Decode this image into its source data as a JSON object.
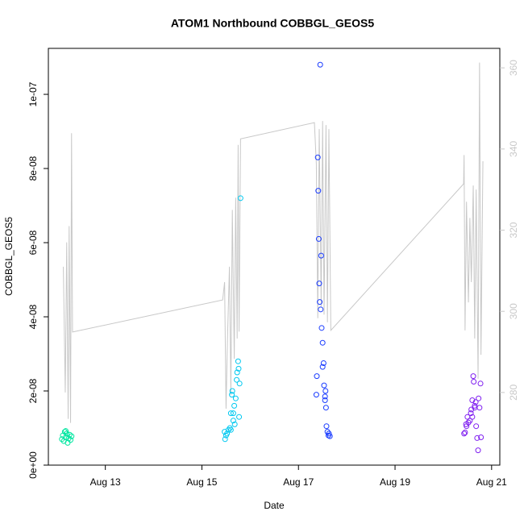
{
  "chart_data": {
    "type": "scatter",
    "title": "ATOM1 Northbound COBBGL_GEOS5",
    "xlabel": "Date",
    "ylabel": "COBBGL_GEOS5",
    "xlim": [
      11.82,
      21.17
    ],
    "xticks": [
      {
        "value": 13,
        "label": "Aug 13"
      },
      {
        "value": 15,
        "label": "Aug 15"
      },
      {
        "value": 17,
        "label": "Aug 17"
      },
      {
        "value": 19,
        "label": "Aug 19"
      },
      {
        "value": 21,
        "label": "Aug 21"
      }
    ],
    "ylim": [
      0,
      1.124e-07
    ],
    "yticks": [
      {
        "value": 0,
        "label": "0e+00"
      },
      {
        "value": 2e-08,
        "label": "2e-08"
      },
      {
        "value": 4e-08,
        "label": "4e-08"
      },
      {
        "value": 6e-08,
        "label": "6e-08"
      },
      {
        "value": 8e-08,
        "label": "8e-08"
      },
      {
        "value": 1e-07,
        "label": "1e-07"
      }
    ],
    "y2lim": [
      262.1,
      364.8
    ],
    "y2ticks": [
      280,
      300,
      320,
      340,
      360
    ],
    "y2_color": "#c8c8c8",
    "series": [
      {
        "type": "scatter",
        "color": "#00e6a0",
        "x": [
          12.1,
          12.12,
          12.14,
          12.16,
          12.18,
          12.2,
          12.22,
          12.24,
          12.26,
          12.28,
          12.18,
          12.3
        ],
        "values": [
          7e-09,
          8e-09,
          6.5e-09,
          9e-09,
          7.5e-09,
          8.5e-09,
          6e-09,
          7.2e-09,
          8.2e-09,
          6.8e-09,
          9.2e-09,
          7.8e-09
        ]
      },
      {
        "type": "scatter",
        "color": "#00c8f0",
        "x": [
          15.47,
          15.48,
          15.5,
          15.52,
          15.55,
          15.58,
          15.6,
          15.62,
          15.63,
          15.65,
          15.67,
          15.68,
          15.7,
          15.72,
          15.73,
          15.75,
          15.76,
          15.77,
          15.78,
          15.8,
          15.6,
          15.65
        ],
        "values": [
          9e-09,
          7e-09,
          8e-09,
          8.5e-09,
          9.5e-09,
          1e-08,
          1.4e-08,
          1.9e-08,
          2e-08,
          1.2e-08,
          1.6e-08,
          1.1e-08,
          1.8e-08,
          2.3e-08,
          2.5e-08,
          2.8e-08,
          2.6e-08,
          1.3e-08,
          2.2e-08,
          7.2e-08,
          9.5e-09,
          1.4e-08
        ]
      },
      {
        "type": "scatter",
        "color": "#1a3cff",
        "x": [
          17.37,
          17.38,
          17.4,
          17.41,
          17.42,
          17.43,
          17.44,
          17.45,
          17.46,
          17.47,
          17.48,
          17.5,
          17.5,
          17.52,
          17.53,
          17.55,
          17.56,
          17.57,
          17.58,
          17.6,
          17.62,
          17.63,
          17.65,
          17.55
        ],
        "values": [
          1.9e-08,
          2.4e-08,
          8.3e-08,
          7.4e-08,
          6.1e-08,
          4.9e-08,
          4.4e-08,
          1.08e-07,
          4.2e-08,
          5.65e-08,
          3.7e-08,
          3.3e-08,
          2.65e-08,
          2.75e-08,
          2.15e-08,
          1.85e-08,
          2e-08,
          1.55e-08,
          1.05e-08,
          9e-09,
          8e-09,
          8.5e-09,
          7.8e-09,
          1.75e-08
        ]
      },
      {
        "type": "scatter",
        "color": "#8020f0",
        "x": [
          20.43,
          20.45,
          20.47,
          20.48,
          20.5,
          20.52,
          20.55,
          20.57,
          20.58,
          20.6,
          20.62,
          20.63,
          20.65,
          20.67,
          20.68,
          20.7,
          20.72,
          20.73,
          20.75,
          20.77,
          20.78,
          20.6,
          20.65
        ],
        "values": [
          8.5e-09,
          8.8e-09,
          1.1e-08,
          1.05e-08,
          1.3e-08,
          1.15e-08,
          1.2e-08,
          1.4e-08,
          1.5e-08,
          1.75e-08,
          2.4e-08,
          2.25e-08,
          1.6e-08,
          1.7e-08,
          1.05e-08,
          7.3e-09,
          4e-09,
          1.8e-08,
          1.55e-08,
          2.2e-08,
          7.5e-09,
          1.3e-08,
          1.55e-08
        ]
      },
      {
        "type": "line",
        "axis": "y2",
        "color": "#c8c8c8",
        "x": [
          12.13,
          12.17,
          12.2,
          12.23,
          12.25,
          12.28,
          12.3,
          12.32,
          15.43,
          15.47,
          15.5,
          15.53,
          15.57,
          15.6,
          15.63,
          15.67,
          15.7,
          15.73,
          15.75,
          15.77,
          15.8,
          17.33,
          17.37,
          17.4,
          17.43,
          17.47,
          17.5,
          17.53,
          17.57,
          17.6,
          17.63,
          17.67,
          20.42,
          20.43,
          20.45,
          20.48,
          20.52,
          20.55,
          20.58,
          20.62,
          20.65,
          20.68,
          20.72,
          20.75,
          20.78,
          20.82
        ],
        "values": [
          311,
          280,
          317,
          273.5,
          321,
          272.5,
          343.9,
          294.9,
          302.8,
          307.2,
          276,
          293.3,
          311,
          279.4,
          325,
          288.3,
          328,
          293.3,
          341,
          295,
          342.5,
          346.5,
          336.3,
          298.3,
          344.9,
          301.2,
          346.9,
          299.2,
          345.9,
          297.3,
          344.9,
          295.3,
          331.4,
          338.5,
          295.3,
          327,
          302.2,
          323,
          307.2,
          331,
          293.3,
          330,
          283.4,
          361.3,
          289.3,
          337
        ]
      }
    ]
  }
}
